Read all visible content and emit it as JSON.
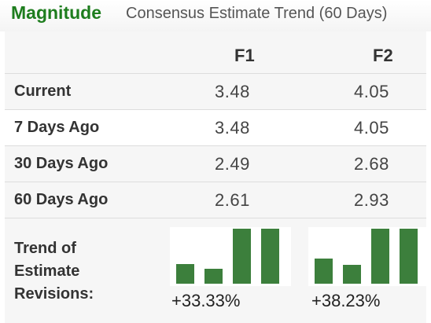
{
  "header": {
    "brand": "Magnitude",
    "subtitle": "Consensus Estimate Trend (60 Days)"
  },
  "table": {
    "columns": [
      "F1",
      "F2"
    ],
    "rows": [
      {
        "label": "Current",
        "values": [
          "3.48",
          "4.05"
        ]
      },
      {
        "label": "7 Days Ago",
        "values": [
          "3.48",
          "4.05"
        ]
      },
      {
        "label": "30 Days Ago",
        "values": [
          "2.49",
          "2.68"
        ]
      },
      {
        "label": "60 Days Ago",
        "values": [
          "2.61",
          "2.93"
        ]
      }
    ]
  },
  "trend": {
    "label_lines": [
      "Trend of",
      "Estimate",
      "Revisions:"
    ],
    "f1": {
      "change": "+33.33%",
      "bars": [
        2.61,
        2.49,
        3.48,
        3.48
      ]
    },
    "f2": {
      "change": "+38.23%",
      "bars": [
        2.93,
        2.68,
        4.05,
        4.05
      ]
    },
    "bar_color": "#3c7f3c"
  },
  "colors": {
    "brand": "#1e7d1e",
    "row_alt": "#f6f6f6"
  }
}
